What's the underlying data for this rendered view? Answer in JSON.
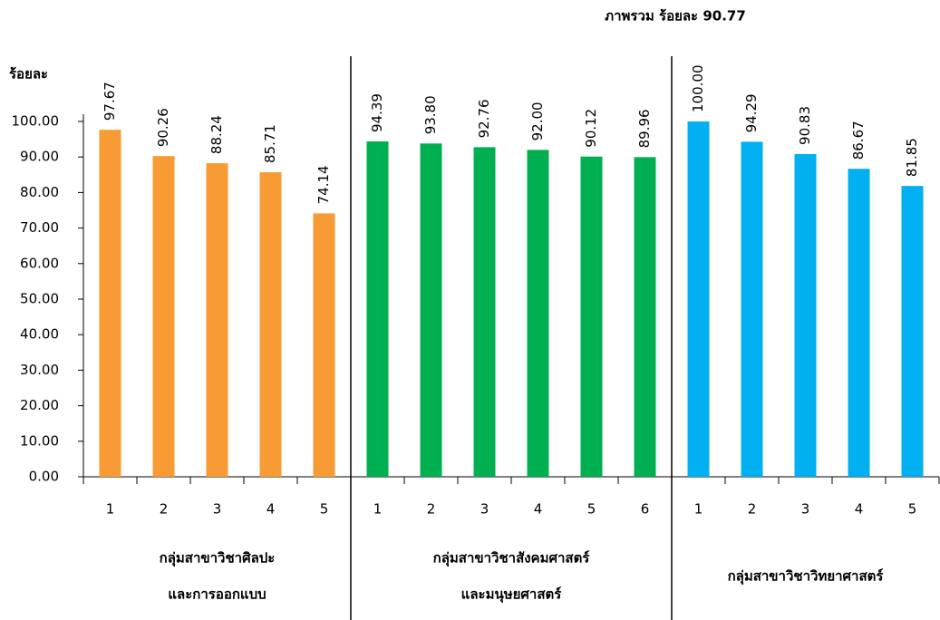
{
  "chart_data": {
    "type": "bar",
    "title": "ภาพรวม ร้อยละ 90.77",
    "y_label": "ร้อยละ",
    "ylim": [
      0,
      100
    ],
    "yticks": [
      {
        "value": 0,
        "label": "0.00"
      },
      {
        "value": 10,
        "label": "10.00"
      },
      {
        "value": 20,
        "label": "20.00"
      },
      {
        "value": 30,
        "label": "30.00"
      },
      {
        "value": 40,
        "label": "40.00"
      },
      {
        "value": 50,
        "label": "50.00"
      },
      {
        "value": 60,
        "label": "60.00"
      },
      {
        "value": 70,
        "label": "70.00"
      },
      {
        "value": 80,
        "label": "80.00"
      },
      {
        "value": 90,
        "label": "90.00"
      },
      {
        "value": 100,
        "label": "100.00"
      }
    ],
    "series": [
      {
        "name": [
          "กลุ่มสาขาวิชาศิลปะ",
          "และการออกแบบ"
        ],
        "color": "#f99b34",
        "categories": [
          "1",
          "2",
          "3",
          "4",
          "5"
        ],
        "values": [
          97.67,
          90.26,
          88.24,
          85.71,
          74.14
        ],
        "value_labels": [
          "97.67",
          "90.26",
          "88.24",
          "85.71",
          "74.14"
        ]
      },
      {
        "name": [
          "กลุ่มสาขาวิชาสังคมศาสตร์",
          "และมนุษยศาสตร์"
        ],
        "color": "#00b050",
        "categories": [
          "1",
          "2",
          "3",
          "4",
          "5",
          "6"
        ],
        "values": [
          94.39,
          93.8,
          92.76,
          92.0,
          90.12,
          89.96
        ],
        "value_labels": [
          "94.39",
          "93.80",
          "92.76",
          "92.00",
          "90.12",
          "89.96"
        ]
      },
      {
        "name": [
          "กลุ่มสาขาวิชาวิทยาศาสตร์"
        ],
        "color": "#00b0f0",
        "categories": [
          "1",
          "2",
          "3",
          "4",
          "5"
        ],
        "values": [
          100.0,
          94.29,
          90.83,
          86.67,
          81.85
        ],
        "value_labels": [
          "100.00",
          "94.29",
          "90.83",
          "86.67",
          "81.85"
        ]
      }
    ]
  }
}
